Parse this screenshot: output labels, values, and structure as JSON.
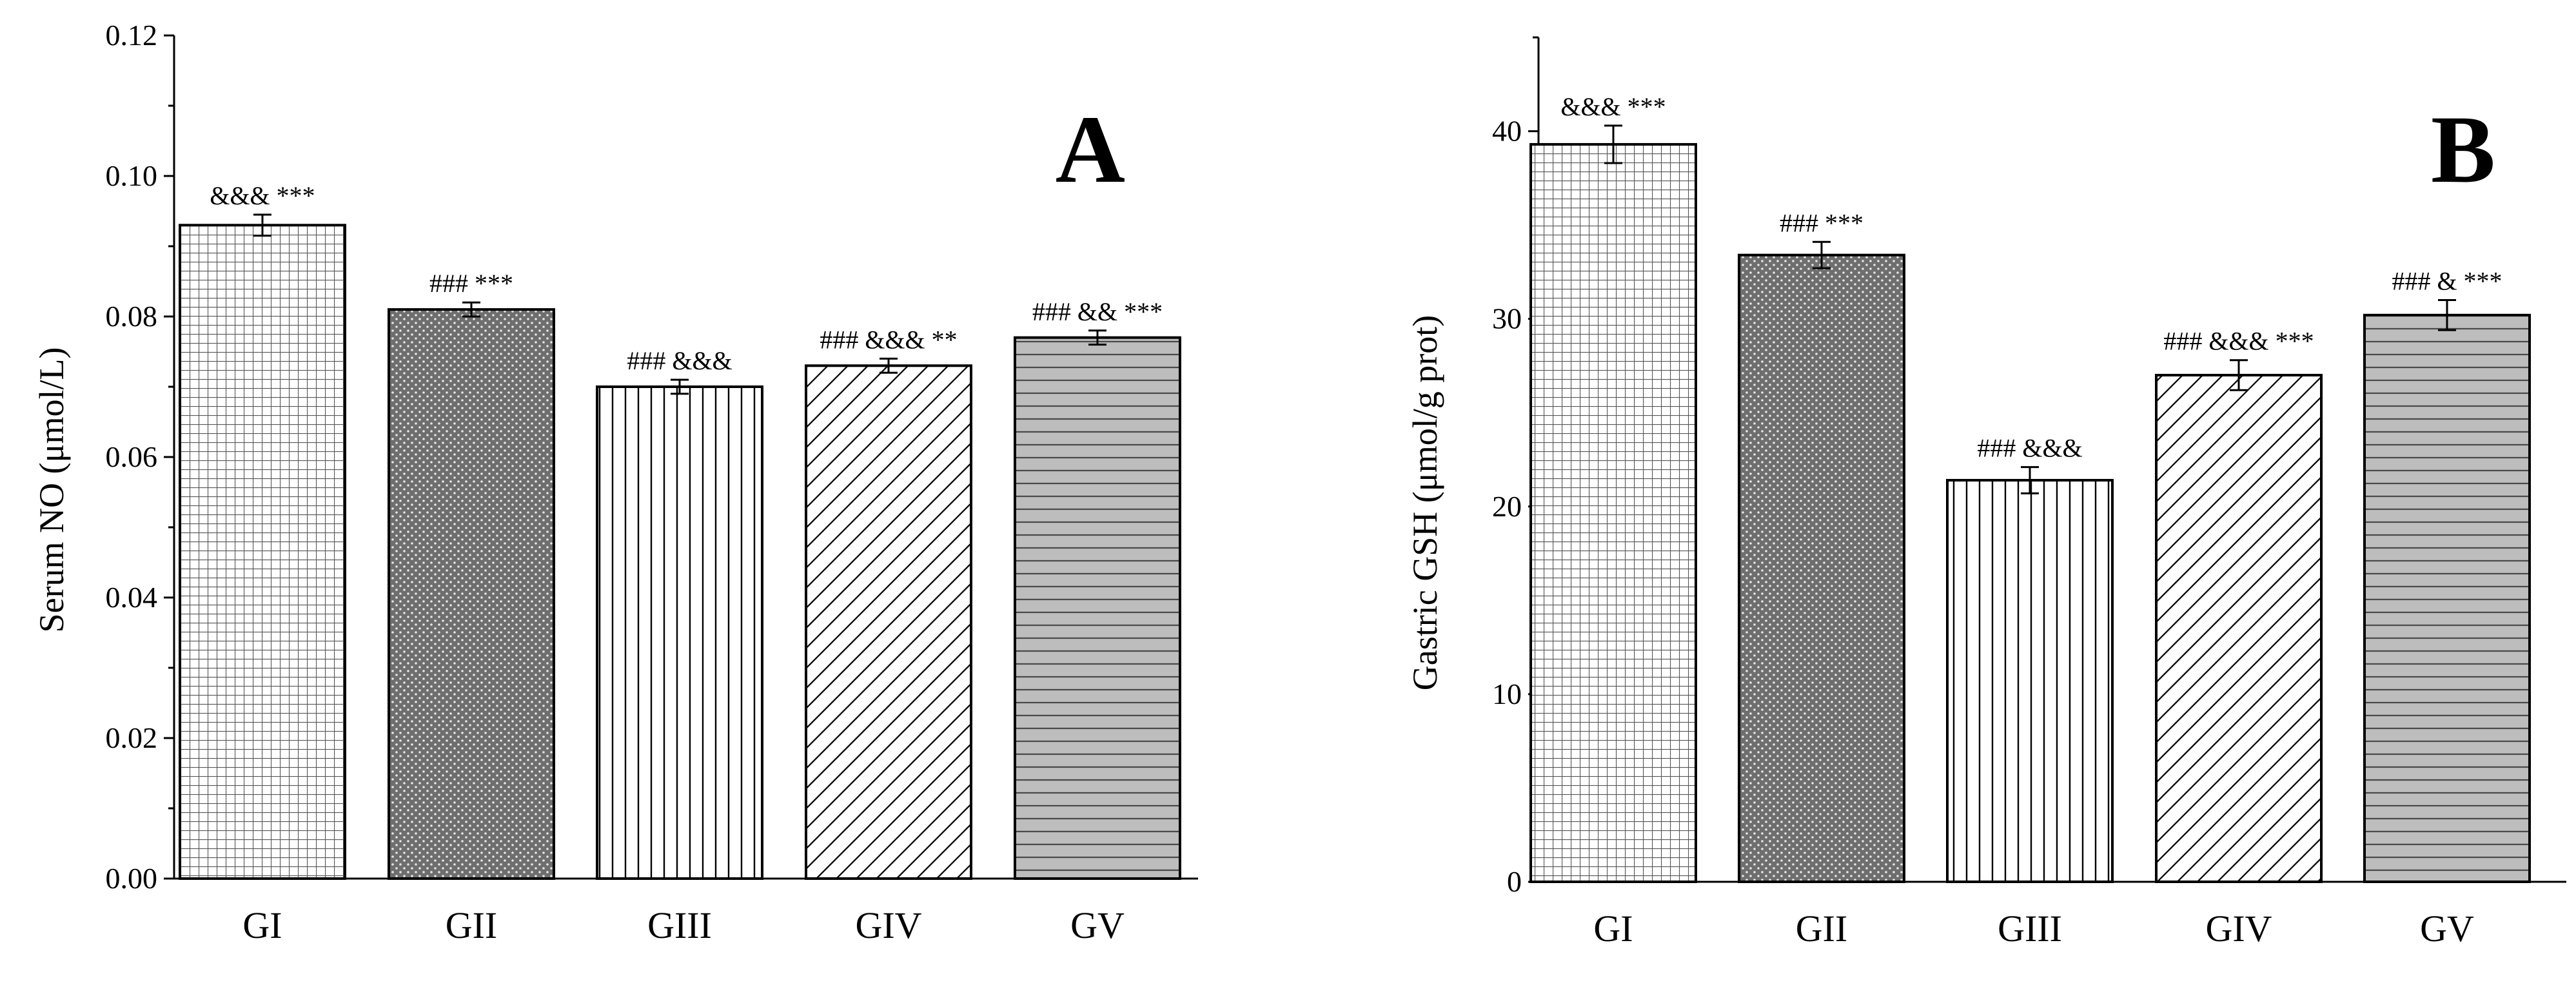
{
  "chart_data": [
    {
      "type": "bar",
      "panel": "A",
      "title": "",
      "xlabel": "",
      "ylabel": "Serum NO (μmol/L)",
      "categories": [
        "GI",
        "GII",
        "GIII",
        "GIV",
        "GV"
      ],
      "values": [
        0.093,
        0.081,
        0.07,
        0.073,
        0.077
      ],
      "errors": [
        0.0015,
        0.001,
        0.001,
        0.001,
        0.001
      ],
      "annotations": [
        "&&& ***",
        "### ***",
        "### &&&",
        "### &&& **",
        "### && ***"
      ],
      "ylim": [
        0,
        0.12
      ],
      "yticks": [
        "0.00",
        "0.02",
        "0.04",
        "0.06",
        "0.08",
        "0.10",
        "0.12"
      ],
      "patterns": [
        "grid",
        "dots",
        "vertical",
        "diagonal",
        "horizontal"
      ],
      "grid": false
    },
    {
      "type": "bar",
      "panel": "B",
      "title": "",
      "xlabel": "",
      "ylabel": "Gastric GSH (μmol/g prot)",
      "categories": [
        "GI",
        "GII",
        "GIII",
        "GIV",
        "GV"
      ],
      "values": [
        39.3,
        33.4,
        21.4,
        27.0,
        30.2
      ],
      "errors": [
        1.0,
        0.7,
        0.7,
        0.8,
        0.8
      ],
      "annotations": [
        "&&& ***",
        "### ***",
        "### &&&",
        "### &&& ***",
        "### & ***"
      ],
      "ylim": [
        0,
        45
      ],
      "yticks": [
        "0",
        "10",
        "20",
        "30",
        "40"
      ],
      "patterns": [
        "grid",
        "dots",
        "vertical",
        "diagonal",
        "horizontal"
      ],
      "grid": false
    }
  ],
  "colors": {
    "bar_stroke": "#000000",
    "grid_pattern_fill": "#ffffff",
    "grid_pattern_line": "#555555",
    "dots_fill": "#6e6e6e",
    "dots_dot": "#e6e6e6",
    "vertical_fill": "#ffffff",
    "diagonal_fill": "#ffffff",
    "horizontal_fill": "#bdbdbd",
    "horizontal_line": "#4a4a4a"
  }
}
